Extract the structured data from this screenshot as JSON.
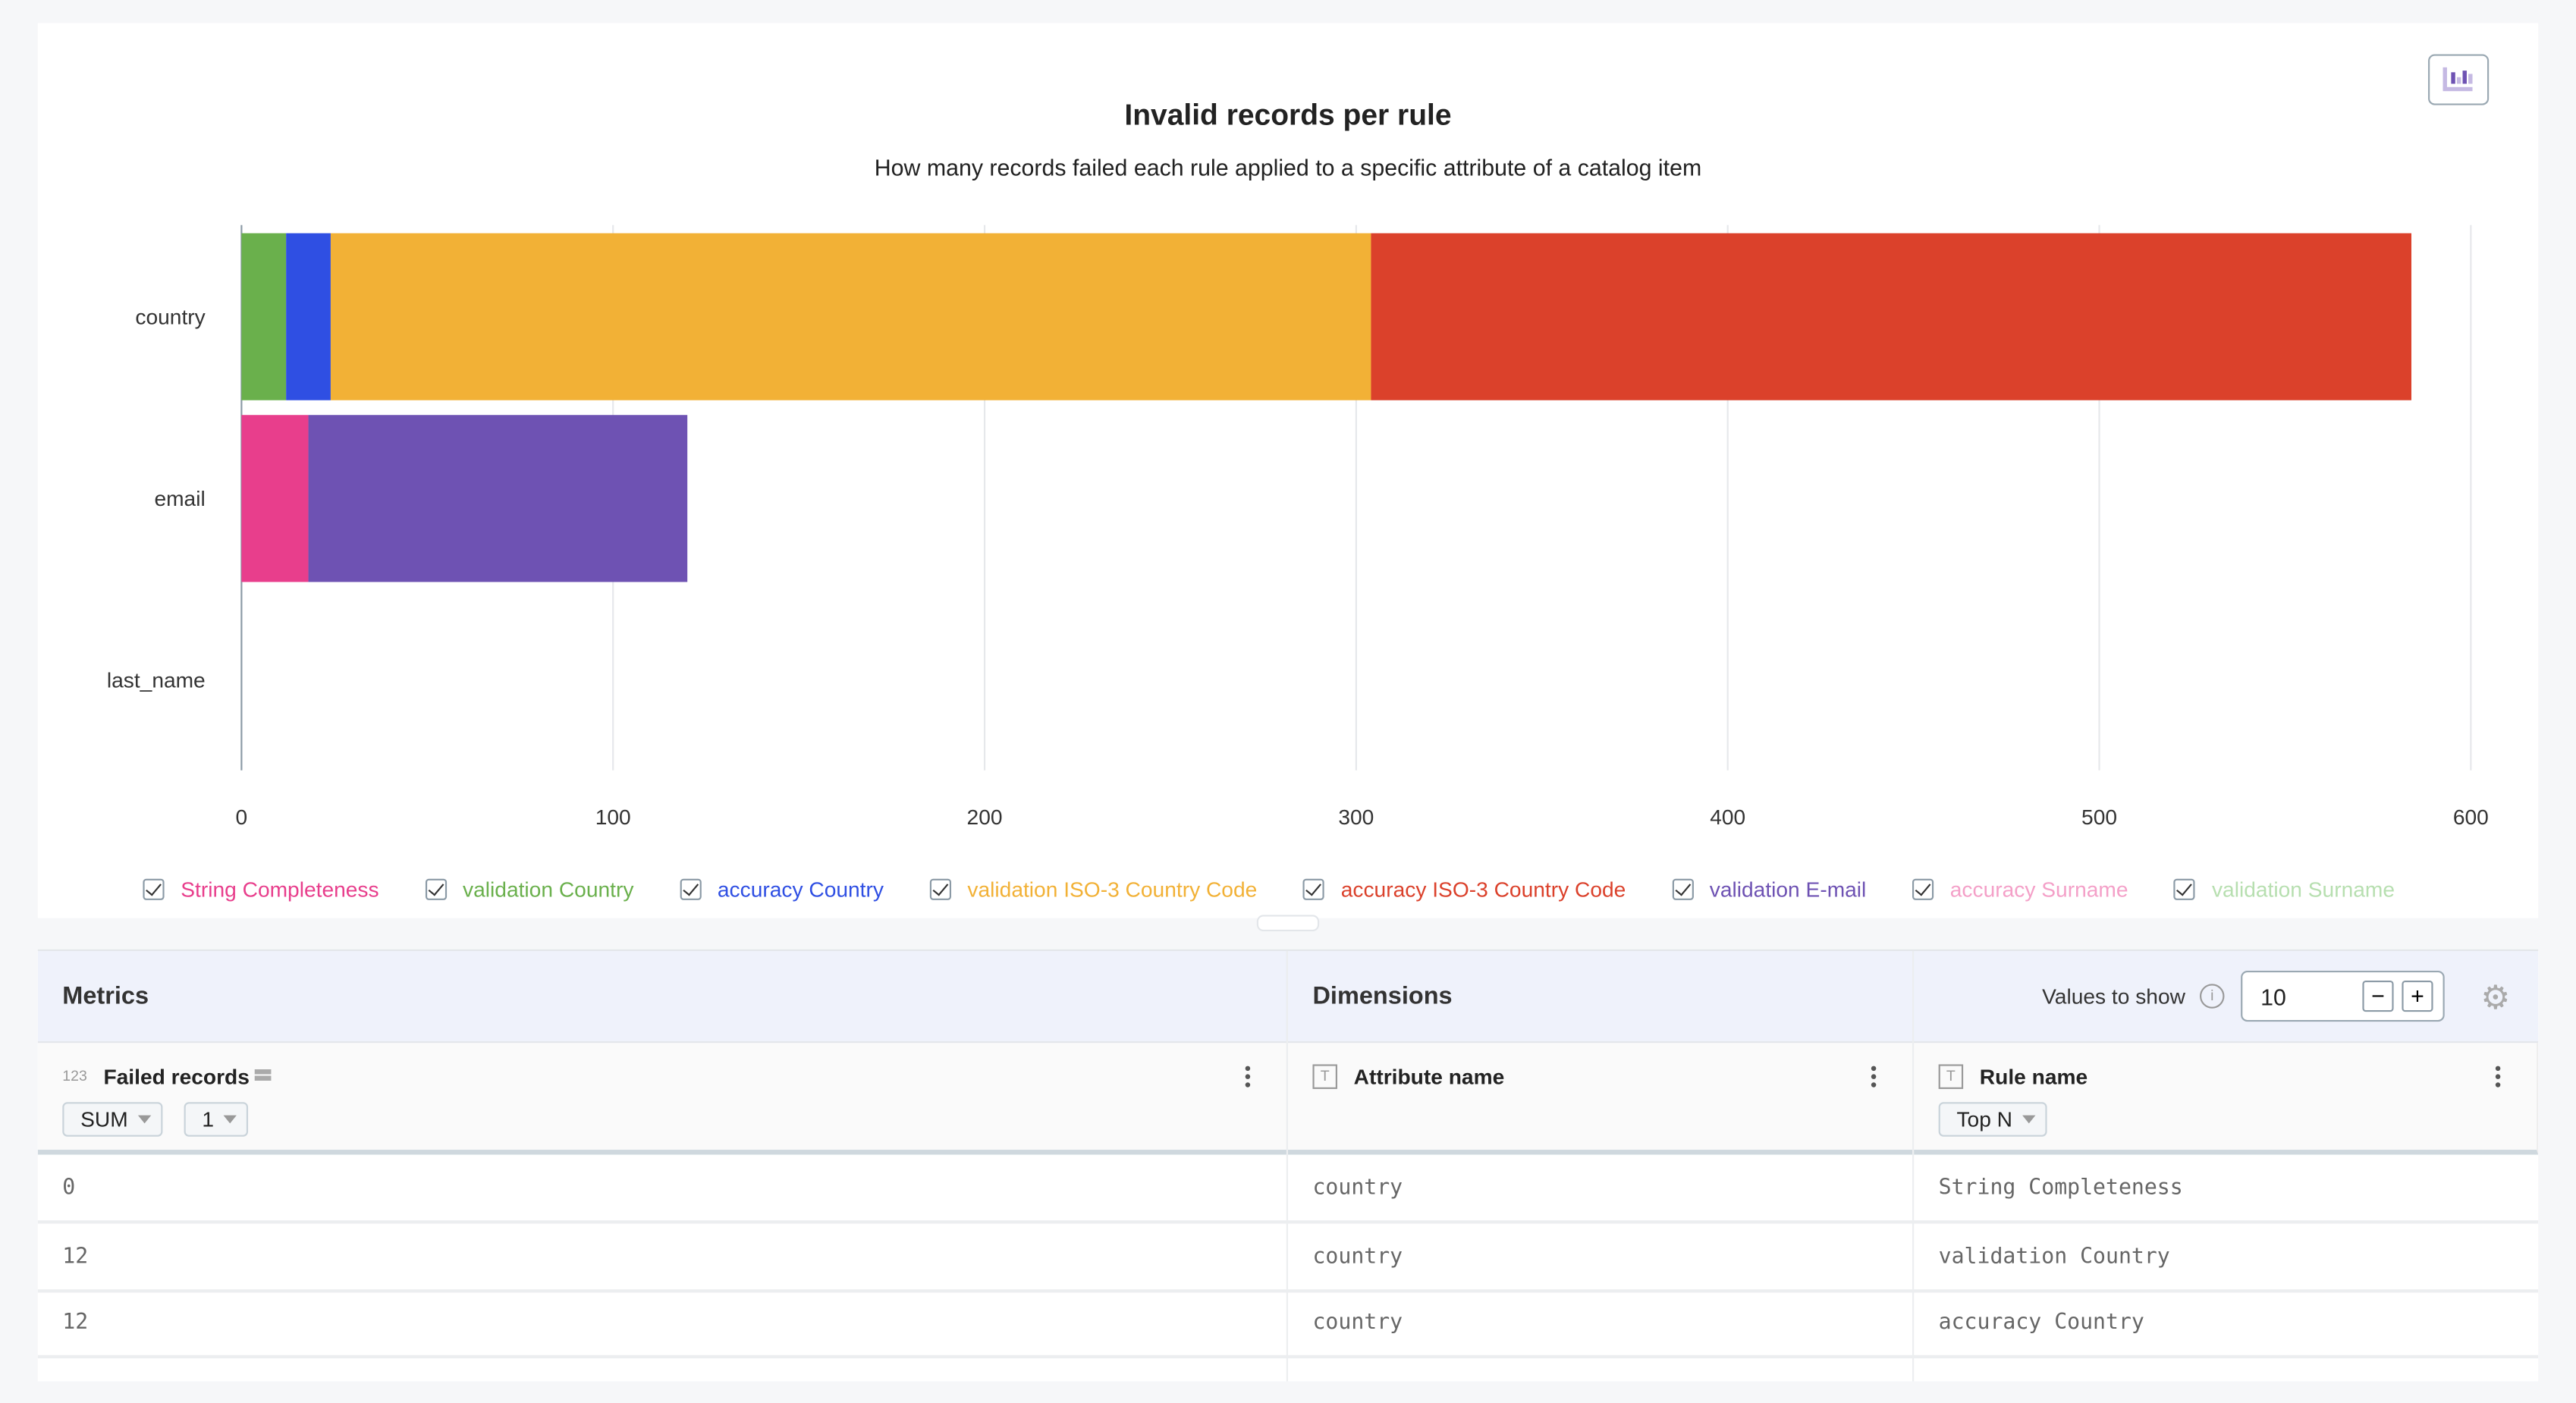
{
  "chart_data": {
    "type": "bar",
    "orientation": "horizontal",
    "stacked": true,
    "title": "Invalid records per rule",
    "subtitle": "How many records failed each rule applied to a specific attribute of a catalog item",
    "categories": [
      "country",
      "email",
      "last_name"
    ],
    "xlim": [
      0,
      600
    ],
    "xticks": [
      "0",
      "100",
      "200",
      "300",
      "400",
      "500",
      "600"
    ],
    "grid": true,
    "legend_position": "bottom",
    "series": [
      {
        "name": "String Completeness",
        "color": "#e83e8c",
        "values": [
          0,
          18,
          0
        ]
      },
      {
        "name": "validation Country",
        "color": "#6ab04c",
        "values": [
          12,
          0,
          0
        ]
      },
      {
        "name": "accuracy Country",
        "color": "#2f4fe3",
        "values": [
          12,
          0,
          0
        ]
      },
      {
        "name": "validation ISO-3 Country Code",
        "color": "#f2b136",
        "values": [
          280,
          0,
          0
        ]
      },
      {
        "name": "accuracy ISO-3 Country Code",
        "color": "#db412b",
        "values": [
          280,
          0,
          0
        ]
      },
      {
        "name": "validation E-mail",
        "color": "#6e52b3",
        "values": [
          0,
          102,
          0
        ]
      },
      {
        "name": "accuracy Surname",
        "color": "#f4a0c8",
        "values": [
          0,
          0,
          0
        ]
      },
      {
        "name": "validation Surname",
        "color": "#b7dfb0",
        "values": [
          0,
          0,
          0
        ]
      }
    ]
  },
  "panel": {
    "metrics_label": "Metrics",
    "dimensions_label": "Dimensions",
    "values_to_show_label": "Values to show",
    "values_to_show": "10",
    "columns": [
      {
        "type_icon": "123",
        "name": "Failed records",
        "chips": [
          "SUM",
          "1"
        ]
      },
      {
        "type_icon": "T",
        "name": "Attribute name",
        "chips": []
      },
      {
        "type_icon": "T",
        "name": "Rule name",
        "chips": [
          "Top N"
        ]
      }
    ],
    "rows": [
      [
        "0",
        "country",
        "String Completeness"
      ],
      [
        "12",
        "country",
        "validation Country"
      ],
      [
        "12",
        "country",
        "accuracy Country"
      ]
    ]
  }
}
